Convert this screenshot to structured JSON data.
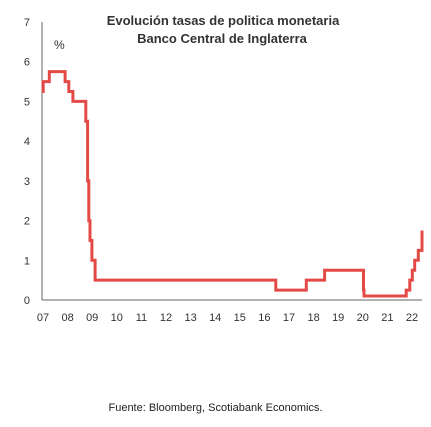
{
  "chart_data": {
    "type": "line",
    "title": "Evolución  tasas de politica monetaria",
    "subtitle": "Banco Central de Inglaterra",
    "ylabel": "%",
    "xlabel": "",
    "ylim": [
      0,
      7
    ],
    "yticks": [
      0,
      1,
      2,
      3,
      4,
      5,
      6,
      7
    ],
    "xlim": [
      2007.0,
      2022.6
    ],
    "xtick_labels": [
      "07",
      "08",
      "09",
      "10",
      "11",
      "12",
      "13",
      "14",
      "15",
      "16",
      "17",
      "18",
      "19",
      "20",
      "21",
      "22"
    ],
    "grid": false,
    "color": "#e34a46",
    "series": [
      {
        "step": true,
        "x": [
          2007.0,
          2007.05,
          2007.3,
          2007.55,
          2007.95,
          2008.1,
          2008.27,
          2008.8,
          2008.87,
          2008.92,
          2008.97,
          2009.05,
          2009.18,
          2016.6,
          2017.85,
          2018.6,
          2020.2,
          2020.22,
          2021.95,
          2022.1,
          2022.2,
          2022.3,
          2022.45,
          2022.6
        ],
        "y": [
          5.25,
          5.5,
          5.75,
          5.75,
          5.5,
          5.25,
          5.0,
          4.5,
          3.0,
          2.0,
          1.5,
          1.0,
          0.5,
          0.25,
          0.5,
          0.75,
          0.25,
          0.1,
          0.25,
          0.5,
          0.75,
          1.0,
          1.25,
          1.75
        ]
      }
    ]
  },
  "source": "Fuente: Bloomberg, Scotiabank Economics."
}
